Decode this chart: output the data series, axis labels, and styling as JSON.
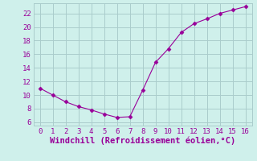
{
  "x": [
    0,
    1,
    2,
    3,
    4,
    5,
    6,
    7,
    8,
    9,
    10,
    11,
    12,
    13,
    14,
    15,
    16
  ],
  "y": [
    11.0,
    10.0,
    9.0,
    8.3,
    7.8,
    7.2,
    6.7,
    6.8,
    10.7,
    14.8,
    16.8,
    19.2,
    20.5,
    21.2,
    22.0,
    22.5,
    23.0
  ],
  "line_color": "#990099",
  "marker": "D",
  "marker_size": 2.5,
  "bg_color": "#cff0eb",
  "grid_color": "#aacccc",
  "xlabel": "Windchill (Refroidissement éolien,°C)",
  "xlim": [
    -0.5,
    16.5
  ],
  "ylim": [
    5.5,
    23.5
  ],
  "yticks": [
    6,
    8,
    10,
    12,
    14,
    16,
    18,
    20,
    22
  ],
  "xticks": [
    0,
    1,
    2,
    3,
    4,
    5,
    6,
    7,
    8,
    9,
    10,
    11,
    12,
    13,
    14,
    15,
    16
  ],
  "tick_color": "#990099",
  "label_color": "#990099",
  "tick_fontsize": 6.5,
  "xlabel_fontsize": 7.5
}
